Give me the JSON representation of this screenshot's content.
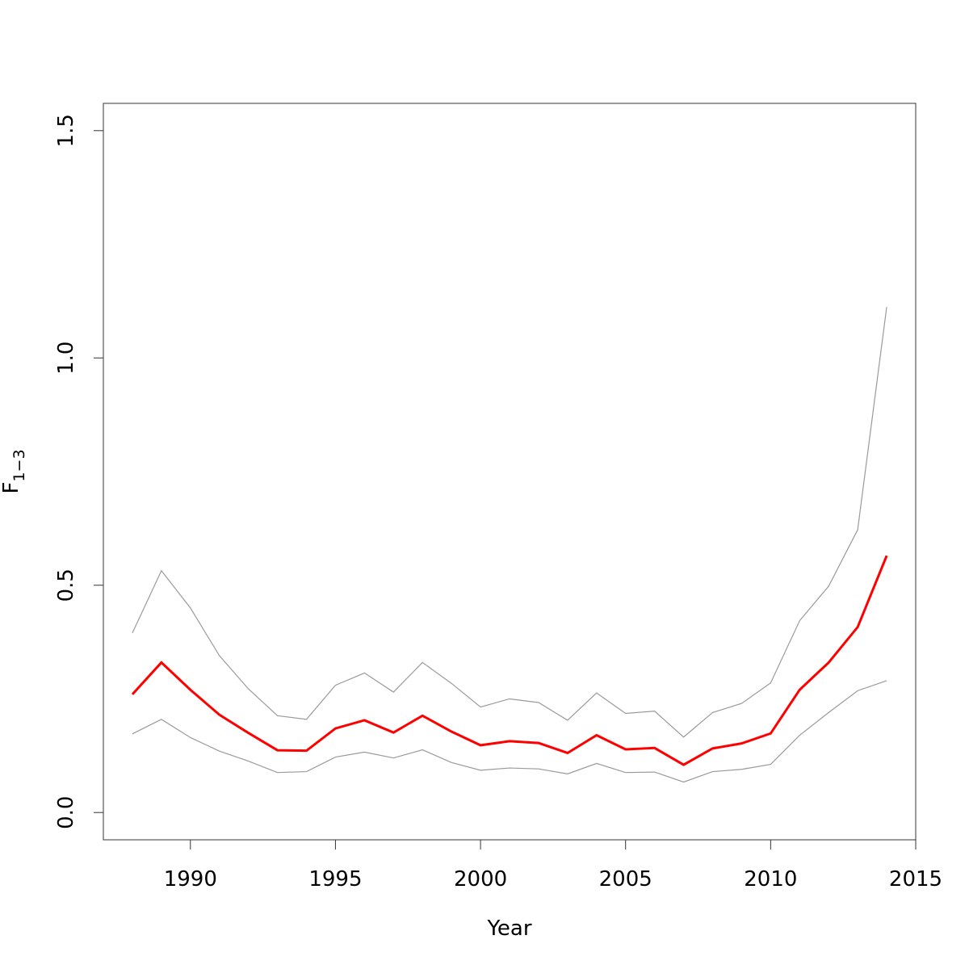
{
  "chart_data": {
    "type": "line",
    "xlabel": "Year",
    "ylabel": {
      "base": "F",
      "subscript": "1−3"
    },
    "xlim": [
      1987,
      2015
    ],
    "ylim": [
      -0.06,
      1.56
    ],
    "xticks": [
      1990,
      1995,
      2000,
      2005,
      2010,
      2015
    ],
    "xtick_labels": [
      "1990",
      "1995",
      "2000",
      "2005",
      "2010",
      "2015"
    ],
    "yticks": [
      0.0,
      0.5,
      1.0,
      1.5
    ],
    "ytick_labels": [
      "0.0",
      "0.5",
      "1.0",
      "1.5"
    ],
    "x": [
      1988,
      1989,
      1990,
      1991,
      1992,
      1993,
      1994,
      1995,
      1996,
      1997,
      1998,
      1999,
      2000,
      2001,
      2002,
      2003,
      2004,
      2005,
      2006,
      2007,
      2008,
      2009,
      2010,
      2011,
      2012,
      2013,
      2014
    ],
    "series": [
      {
        "role": "estimate",
        "color": "#ff0000",
        "values": [
          0.26,
          0.33,
          0.27,
          0.215,
          0.175,
          0.137,
          0.136,
          0.185,
          0.203,
          0.176,
          0.213,
          0.178,
          0.148,
          0.157,
          0.153,
          0.131,
          0.17,
          0.139,
          0.142,
          0.105,
          0.141,
          0.152,
          0.174,
          0.27,
          0.33,
          0.408,
          0.565
        ]
      },
      {
        "role": "upper",
        "color": "#9a9a9a",
        "values": [
          0.395,
          0.532,
          0.45,
          0.345,
          0.272,
          0.213,
          0.205,
          0.28,
          0.307,
          0.265,
          0.33,
          0.284,
          0.232,
          0.25,
          0.242,
          0.203,
          0.263,
          0.218,
          0.223,
          0.166,
          0.22,
          0.24,
          0.285,
          0.422,
          0.498,
          0.622,
          1.112
        ]
      },
      {
        "role": "lower",
        "color": "#9a9a9a",
        "values": [
          0.173,
          0.205,
          0.165,
          0.135,
          0.113,
          0.088,
          0.09,
          0.122,
          0.133,
          0.12,
          0.138,
          0.11,
          0.093,
          0.098,
          0.096,
          0.085,
          0.108,
          0.088,
          0.089,
          0.067,
          0.09,
          0.095,
          0.106,
          0.17,
          0.22,
          0.268,
          0.29
        ]
      }
    ]
  }
}
